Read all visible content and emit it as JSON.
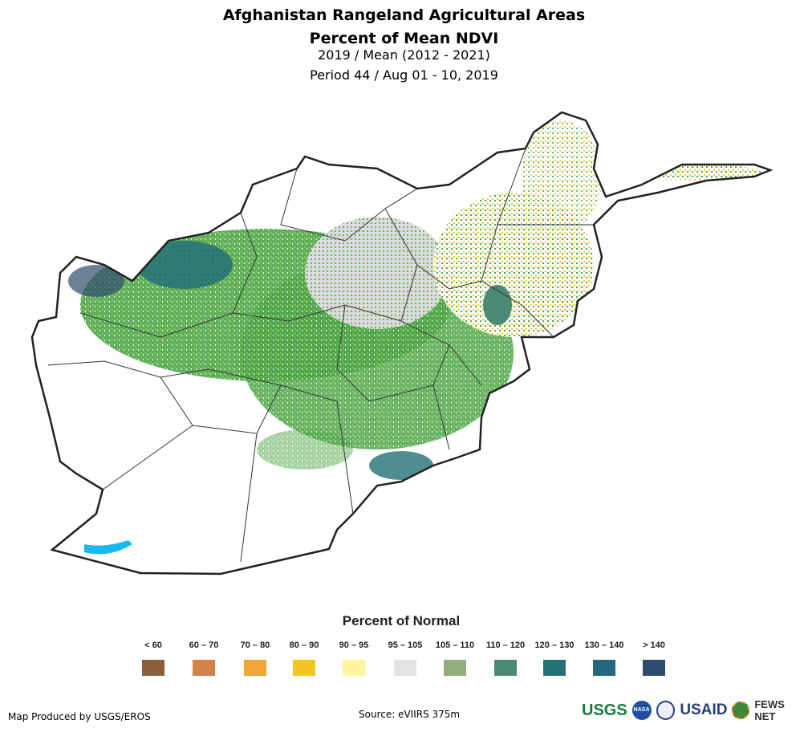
{
  "title_line1": "Afghanistan Rangeland Agricultural Areas",
  "title_line2": "Percent of Mean NDVI",
  "subtitle_line1": "2019 / Mean (2012 - 2021)",
  "subtitle_line2": "Period 44 / Aug 01 - 10, 2019",
  "legend": {
    "title": "Percent of Normal",
    "items": [
      {
        "label": "< 60",
        "color": "#8B5E3C"
      },
      {
        "label": "60 – 70",
        "color": "#D4824A"
      },
      {
        "label": "70 – 80",
        "color": "#EDA736"
      },
      {
        "label": "80 – 90",
        "color": "#F5C623"
      },
      {
        "label": "90 – 95",
        "color": "#FEF59C"
      },
      {
        "label": "95 – 105",
        "color": "#E3E3E3"
      },
      {
        "label": "105 – 110",
        "color": "#93AD7E"
      },
      {
        "label": "110 – 120",
        "color": "#4A8A72"
      },
      {
        "label": "120 – 130",
        "color": "#247176"
      },
      {
        "label": "130 – 140",
        "color": "#25677F"
      },
      {
        "label": "> 140",
        "color": "#2E4A6C"
      }
    ]
  },
  "footer": {
    "credit": "Map Produced by USGS/EROS",
    "source": "Source: eVIIRS 375m"
  },
  "logos": {
    "usgs": "USGS",
    "nasa": "NASA",
    "usaid": "USAID",
    "fews": "FEWS NET"
  }
}
